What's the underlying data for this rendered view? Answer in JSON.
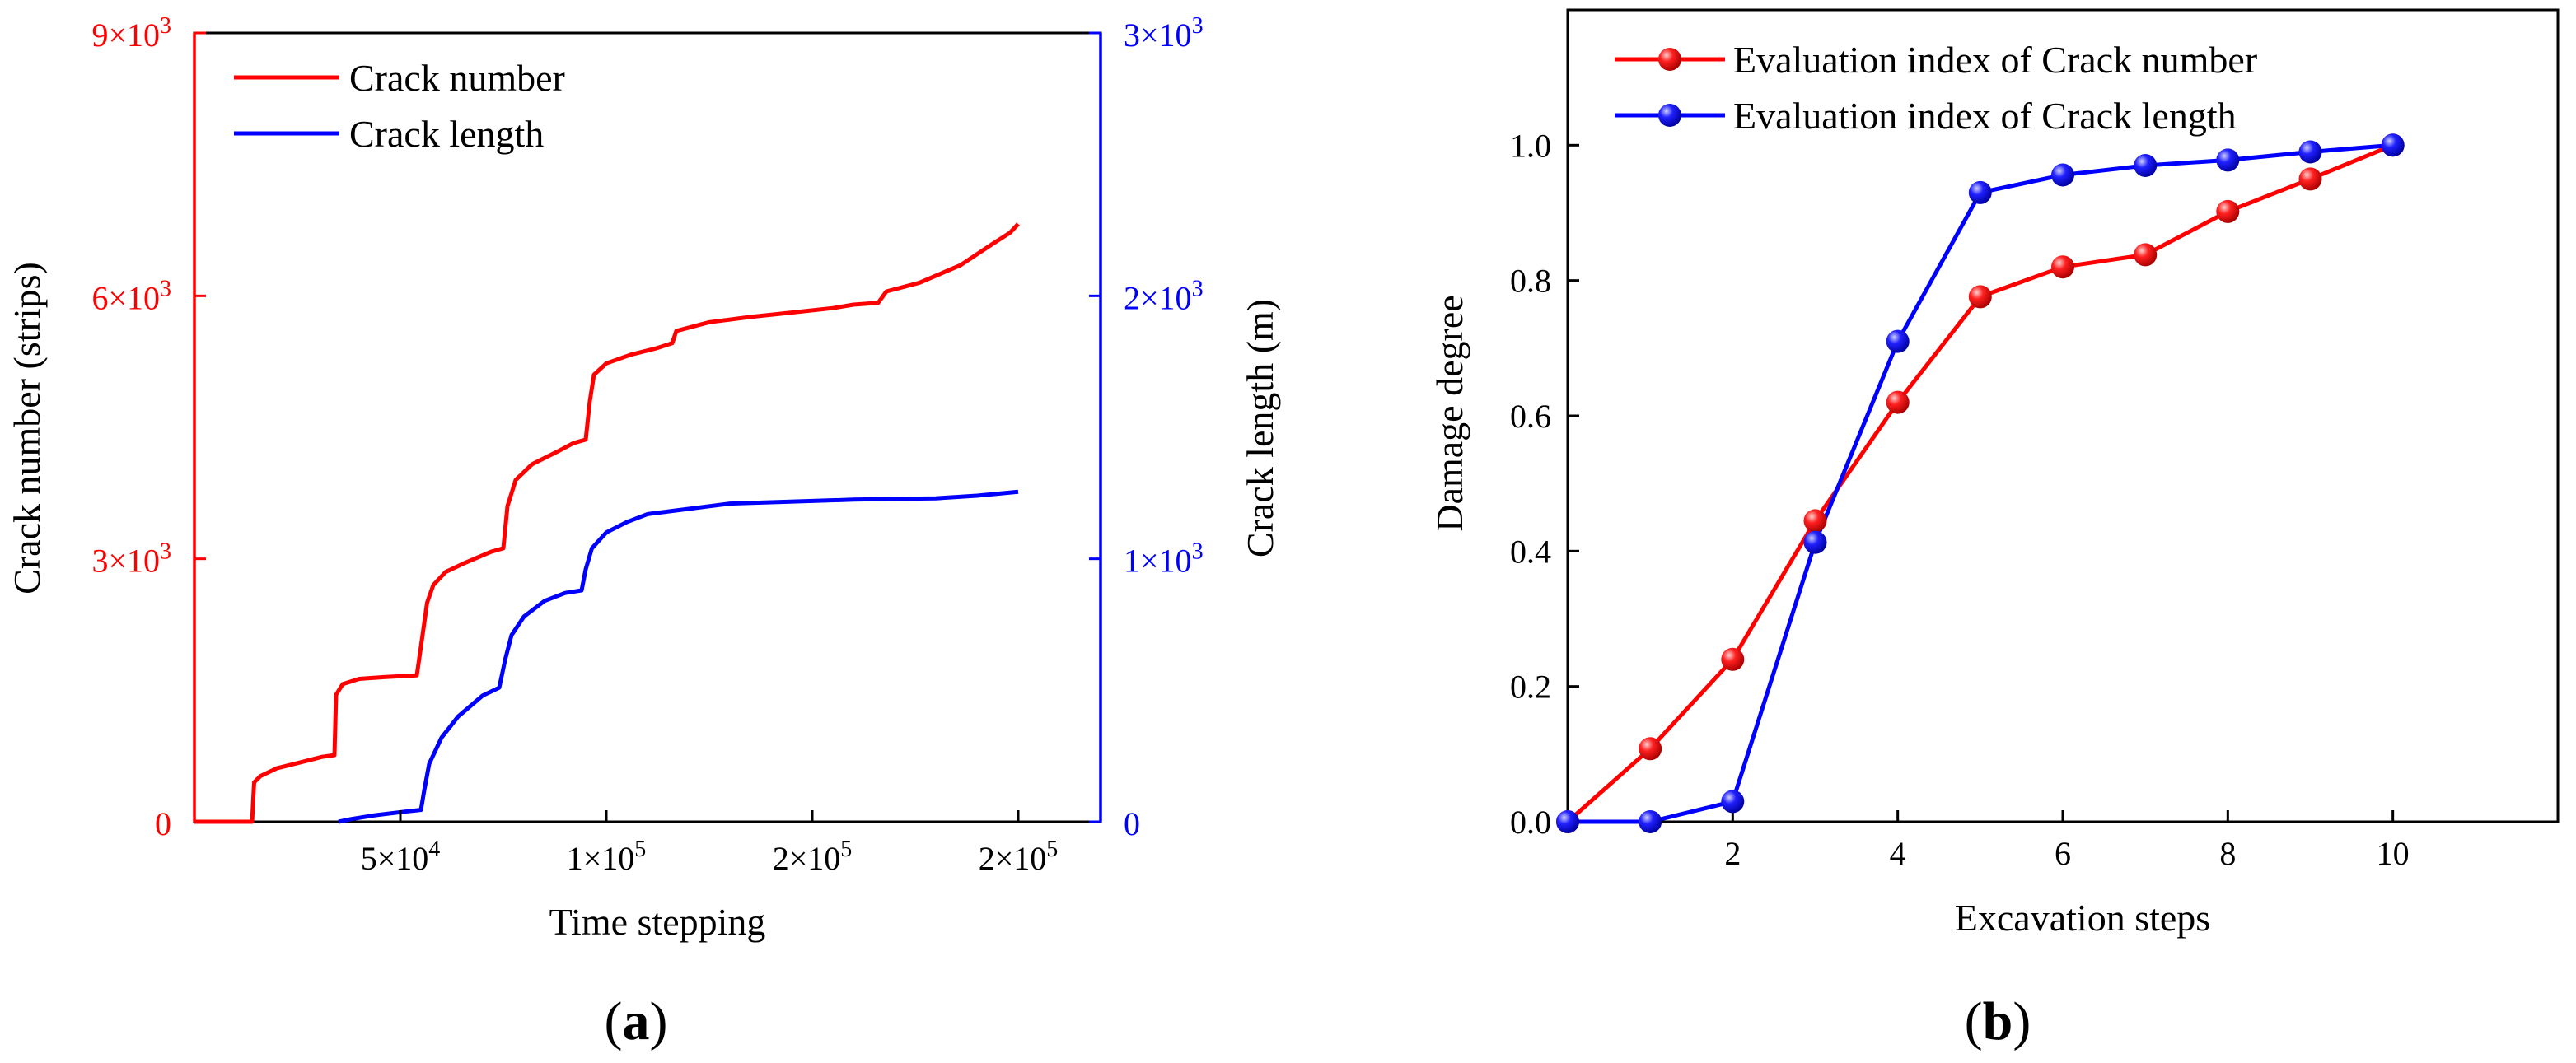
{
  "chart_data": [
    {
      "panel": "(a)",
      "panel_label": {
        "open": "(",
        "letter": "a",
        "close": ")"
      },
      "type": "line",
      "x_label": "Time stepping",
      "y_label": "Crack number (strips)",
      "y2_label": "Crack length (m)",
      "x_range": [
        0,
        220000
      ],
      "y_range": [
        0,
        9000
      ],
      "y2_range": [
        0,
        3000
      ],
      "x_ticks": [
        {
          "value": 50000,
          "mant": "5×10",
          "exp": "4"
        },
        {
          "value": 100000,
          "mant": "1×10",
          "exp": "5"
        },
        {
          "value": 150000,
          "mant": "2×10",
          "exp": "5"
        },
        {
          "value": 200000,
          "mant": "2×10",
          "exp": "5"
        }
      ],
      "y_ticks": [
        {
          "value": 0,
          "mant": "0",
          "exp": ""
        },
        {
          "value": 3000,
          "mant": "3×10",
          "exp": "3"
        },
        {
          "value": 6000,
          "mant": "6×10",
          "exp": "3"
        },
        {
          "value": 9000,
          "mant": "9×10",
          "exp": "3"
        }
      ],
      "y2_ticks": [
        {
          "value": 0,
          "mant": "0",
          "exp": ""
        },
        {
          "value": 1000,
          "mant": "1×10",
          "exp": "3"
        },
        {
          "value": 2000,
          "mant": "2×10",
          "exp": "3"
        },
        {
          "value": 3000,
          "mant": "3×10",
          "exp": "3"
        }
      ],
      "series": [
        {
          "name": "Crack number",
          "color": "#ff0000",
          "axis": "left",
          "points": [
            [
              0,
              0
            ],
            [
              14000,
              0
            ],
            [
              14500,
              450
            ],
            [
              16000,
              520
            ],
            [
              20000,
              610
            ],
            [
              26000,
              680
            ],
            [
              31000,
              740
            ],
            [
              34000,
              760
            ],
            [
              34400,
              1450
            ],
            [
              36000,
              1570
            ],
            [
              40000,
              1630
            ],
            [
              46000,
              1650
            ],
            [
              54000,
              1670
            ],
            [
              55000,
              2000
            ],
            [
              56500,
              2500
            ],
            [
              58000,
              2700
            ],
            [
              61000,
              2850
            ],
            [
              66000,
              2960
            ],
            [
              72000,
              3080
            ],
            [
              75000,
              3120
            ],
            [
              76000,
              3600
            ],
            [
              78000,
              3900
            ],
            [
              82000,
              4080
            ],
            [
              88000,
              4220
            ],
            [
              92000,
              4320
            ],
            [
              95000,
              4360
            ],
            [
              96000,
              4800
            ],
            [
              97000,
              5100
            ],
            [
              100000,
              5230
            ],
            [
              106000,
              5330
            ],
            [
              112000,
              5400
            ],
            [
              116000,
              5460
            ],
            [
              117000,
              5600
            ],
            [
              125000,
              5700
            ],
            [
              135000,
              5760
            ],
            [
              145000,
              5810
            ],
            [
              155000,
              5860
            ],
            [
              160000,
              5900
            ],
            [
              166000,
              5920
            ],
            [
              168000,
              6050
            ],
            [
              176000,
              6150
            ],
            [
              186000,
              6350
            ],
            [
              194000,
              6600
            ],
            [
              198000,
              6720
            ],
            [
              200000,
              6820
            ]
          ]
        },
        {
          "name": "Crack length",
          "color": "#0000ff",
          "axis": "right",
          "points": [
            [
              35000,
              0
            ],
            [
              38000,
              10
            ],
            [
              44000,
              25
            ],
            [
              52000,
              40
            ],
            [
              55000,
              45
            ],
            [
              55800,
              120
            ],
            [
              57000,
              220
            ],
            [
              60000,
              320
            ],
            [
              64000,
              400
            ],
            [
              70000,
              480
            ],
            [
              74000,
              510
            ],
            [
              75500,
              620
            ],
            [
              77000,
              710
            ],
            [
              80000,
              780
            ],
            [
              85000,
              840
            ],
            [
              90000,
              870
            ],
            [
              94000,
              880
            ],
            [
              95000,
              960
            ],
            [
              96500,
              1040
            ],
            [
              100000,
              1100
            ],
            [
              105000,
              1140
            ],
            [
              110000,
              1170
            ],
            [
              120000,
              1190
            ],
            [
              125000,
              1200
            ],
            [
              130000,
              1210
            ],
            [
              140000,
              1215
            ],
            [
              150000,
              1220
            ],
            [
              160000,
              1225
            ],
            [
              170000,
              1228
            ],
            [
              180000,
              1230
            ],
            [
              190000,
              1240
            ],
            [
              200000,
              1255
            ]
          ]
        }
      ]
    },
    {
      "panel": "(b)",
      "panel_label": {
        "open": "(",
        "letter": "b",
        "close": ")"
      },
      "type": "line",
      "x_label": "Excavation steps",
      "y_label": "Damage degree",
      "x_range": [
        0,
        12
      ],
      "y_range": [
        0,
        1.2
      ],
      "x_ticks": [
        "2",
        "4",
        "6",
        "8",
        "10"
      ],
      "y_ticks": [
        "0.0",
        "0.2",
        "0.4",
        "0.6",
        "0.8",
        "1.0"
      ],
      "x": [
        0,
        1,
        2,
        3,
        4,
        5,
        6,
        7,
        8,
        9,
        10
      ],
      "series": [
        {
          "name": "Evaluation index of Crack number",
          "color": "#ff0000",
          "values": [
            0,
            0.108,
            0.24,
            0.445,
            0.62,
            0.776,
            0.82,
            0.838,
            0.902,
            0.95,
            1.0
          ]
        },
        {
          "name": "Evaluation index of Crack length",
          "color": "#0000ff",
          "values": [
            0,
            0,
            0.03,
            0.413,
            0.71,
            0.93,
            0.956,
            0.97,
            0.978,
            0.99,
            1.0
          ]
        }
      ]
    }
  ]
}
